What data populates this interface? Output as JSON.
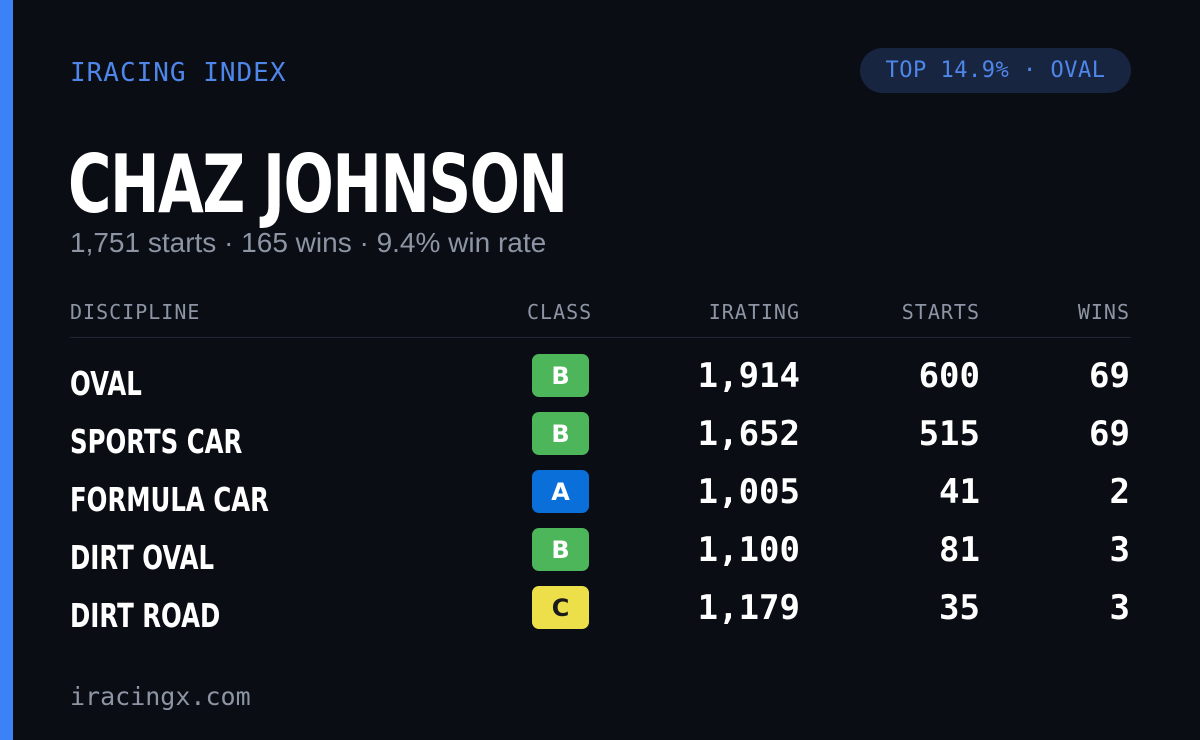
{
  "brand": "IRACING INDEX",
  "percentile_badge": "TOP 14.9% · OVAL",
  "driver": {
    "name": "CHAZ JOHNSON",
    "summary": "1,751 starts · 165 wins · 9.4% win rate"
  },
  "table": {
    "headers": {
      "discipline": "DISCIPLINE",
      "class": "CLASS",
      "irating": "IRATING",
      "starts": "STARTS",
      "wins": "WINS"
    },
    "rows": [
      {
        "discipline": "OVAL",
        "class": "B",
        "irating": "1,914",
        "starts": "600",
        "wins": "69"
      },
      {
        "discipline": "SPORTS CAR",
        "class": "B",
        "irating": "1,652",
        "starts": "515",
        "wins": "69"
      },
      {
        "discipline": "FORMULA CAR",
        "class": "A",
        "irating": "1,005",
        "starts": "41",
        "wins": "2"
      },
      {
        "discipline": "DIRT OVAL",
        "class": "B",
        "irating": "1,100",
        "starts": "81",
        "wins": "3"
      },
      {
        "discipline": "DIRT ROAD",
        "class": "C",
        "irating": "1,179",
        "starts": "35",
        "wins": "3"
      }
    ]
  },
  "class_colors": {
    "A": {
      "bg": "#0a6fd8",
      "fg": "#ffffff"
    },
    "B": {
      "bg": "#4db55a",
      "fg": "#ffffff"
    },
    "C": {
      "bg": "#ecdf4a",
      "fg": "#1a1a1a"
    }
  },
  "footer": "iracingx.com",
  "colors": {
    "background": "#0a0d14",
    "accent": "#3b82f6",
    "muted_text": "#8d95a4"
  }
}
